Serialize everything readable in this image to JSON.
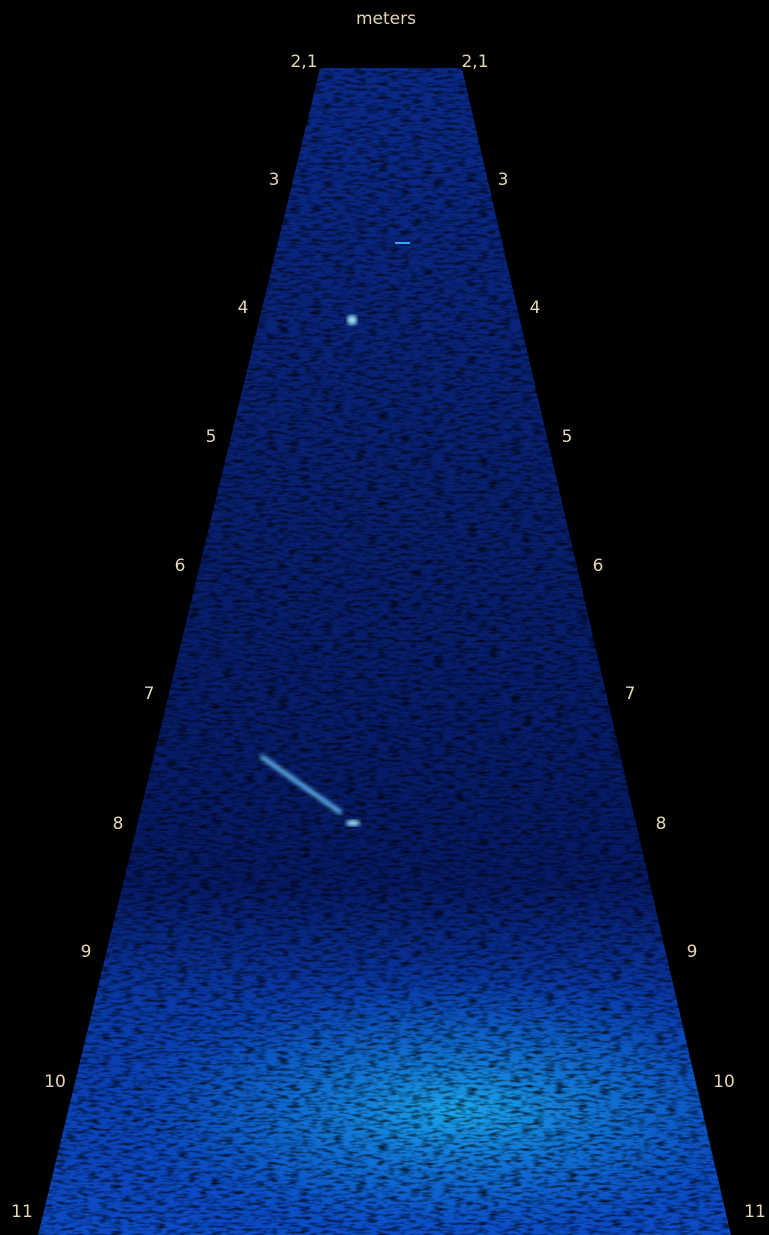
{
  "unit_label": "meters",
  "range_labels_left": [
    "2,1",
    "3",
    "4",
    "5",
    "6",
    "7",
    "8",
    "9",
    "10",
    "11"
  ],
  "range_labels_right": [
    "2,1",
    "3",
    "4",
    "5",
    "6",
    "7",
    "8",
    "9",
    "10",
    "11"
  ]
}
